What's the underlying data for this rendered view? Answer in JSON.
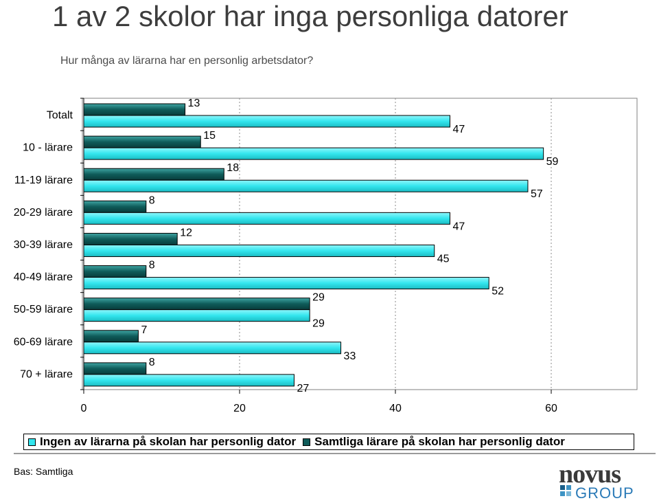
{
  "header": {
    "title": "1 av 2 skolor har inga personliga datorer",
    "subtitle": "Hur många av lärarna har en personlig arbetsdator?"
  },
  "footer": {
    "note": "Bas: Samtliga"
  },
  "logo": {
    "word_top": "novus",
    "word_bottom": "GROUP"
  },
  "legend": {
    "items": [
      {
        "label": "Ingen av lärarna på skolan har personlig dator",
        "color": "#33e6ee"
      },
      {
        "label": "Samtliga lärare på skolan har personlig dator",
        "color": "#0f5c5a"
      }
    ]
  },
  "chart_data": {
    "type": "bar",
    "orientation": "horizontal",
    "categories": [
      "Totalt",
      "10 - lärare",
      "11-19 lärare",
      "20-29 lärare",
      "30-39 lärare",
      "40-49 lärare",
      "50-59 lärare",
      "60-69 lärare",
      "70 + lärare"
    ],
    "series": [
      {
        "name": "Samtliga lärare på skolan har personlig dator",
        "color": "#0f5c5a",
        "values": [
          13,
          15,
          18,
          8,
          12,
          8,
          29,
          7,
          8
        ]
      },
      {
        "name": "Ingen av lärarna på skolan har personlig dator",
        "color": "#33e6ee",
        "values": [
          47,
          59,
          57,
          47,
          45,
          52,
          29,
          33,
          27
        ]
      }
    ],
    "xlim": [
      0,
      70
    ],
    "xticks": [
      0,
      20,
      40,
      60
    ],
    "grid": true,
    "legend_position": "bottom"
  }
}
